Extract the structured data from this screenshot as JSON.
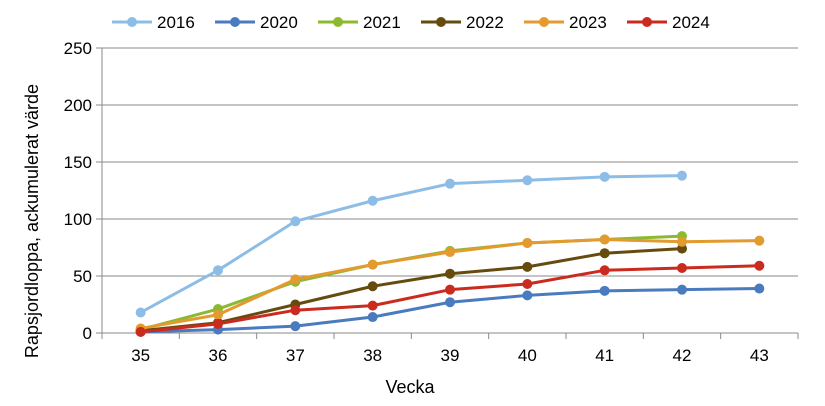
{
  "chart_data": {
    "type": "line",
    "title": "",
    "xlabel": "Vecka",
    "ylabel": "Rapsjordloppa, ackumulerat värde",
    "categories": [
      "35",
      "36",
      "37",
      "38",
      "39",
      "40",
      "41",
      "42",
      "43"
    ],
    "ylim": [
      0,
      250
    ],
    "yticks": [
      0,
      50,
      100,
      150,
      200,
      250
    ],
    "grid": "horizontal",
    "legend_position": "top",
    "series": [
      {
        "name": "2016",
        "color": "#8DBDE6",
        "values": [
          18,
          55,
          98,
          116,
          131,
          134,
          137,
          138,
          null
        ]
      },
      {
        "name": "2020",
        "color": "#4A7BBE",
        "values": [
          1,
          3,
          6,
          14,
          27,
          33,
          37,
          38,
          39
        ]
      },
      {
        "name": "2021",
        "color": "#8DB931",
        "values": [
          3,
          21,
          45,
          60,
          72,
          79,
          82,
          85,
          null
        ]
      },
      {
        "name": "2022",
        "color": "#654B0E",
        "values": [
          2,
          9,
          25,
          41,
          52,
          58,
          70,
          74,
          null
        ]
      },
      {
        "name": "2023",
        "color": "#E39A2F",
        "values": [
          4,
          16,
          47,
          60,
          71,
          79,
          82,
          80,
          81
        ]
      },
      {
        "name": "2024",
        "color": "#CB2A1F",
        "values": [
          1,
          8,
          20,
          24,
          38,
          43,
          55,
          57,
          59
        ]
      }
    ]
  }
}
